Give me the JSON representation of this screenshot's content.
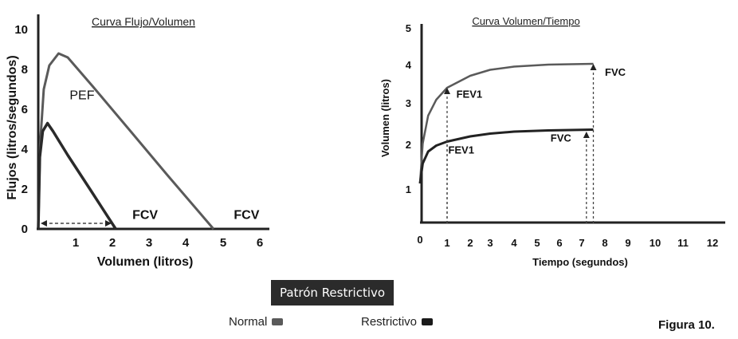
{
  "chart_data": [
    {
      "type": "line",
      "title": "Curva Flujo/Volumen",
      "xlabel": "Volumen (litros)",
      "ylabel": "Flujos (litros/segundos)",
      "xlim": [
        0,
        6
      ],
      "ylim": [
        0,
        10
      ],
      "x_ticks": [
        "1",
        "2",
        "3",
        "4",
        "5",
        "6"
      ],
      "y_ticks": [
        "0",
        "2",
        "4",
        "6",
        "8",
        "10"
      ],
      "series": [
        {
          "points": [
            [
              0,
              0
            ],
            [
              0.05,
              4.2
            ],
            [
              0.15,
              7.0
            ],
            [
              0.3,
              8.2
            ],
            [
              0.55,
              8.8
            ],
            [
              0.8,
              8.6
            ],
            [
              1.5,
              7.1
            ],
            [
              2.5,
              4.9
            ],
            [
              3.5,
              2.7
            ],
            [
              4.75,
              0
            ]
          ]
        },
        {
          "points": [
            [
              0,
              0
            ],
            [
              0.04,
              3.6
            ],
            [
              0.12,
              4.9
            ],
            [
              0.25,
              5.3
            ],
            [
              0.4,
              4.9
            ],
            [
              0.8,
              3.7
            ],
            [
              1.4,
              2.0
            ],
            [
              2.1,
              0
            ]
          ]
        }
      ],
      "annotations": [
        {
          "text": "PEF",
          "x": 0.85,
          "y": 6.5
        },
        {
          "text": "FCV",
          "x": 2.55,
          "y": 0.5
        },
        {
          "text": "FCV",
          "x": 5.3,
          "y": 0.5
        }
      ],
      "range_arrow": {
        "from": 0.15,
        "to": 1.9,
        "y": 0.2
      }
    },
    {
      "type": "line",
      "title": "Curva Volumen/Tiempo",
      "xlabel": "Tiempo (segundos)",
      "ylabel": "Volumen (litros)",
      "xlim": [
        0,
        12.5
      ],
      "ylim": [
        0,
        5
      ],
      "x_ticks": [
        "0",
        "1",
        "2",
        "3",
        "4",
        "5",
        "6",
        "7",
        "8",
        "9",
        "10",
        "11",
        "12"
      ],
      "y_ticks": [
        "1",
        "2",
        "3",
        "4",
        "5"
      ],
      "series": [
        {
          "points": [
            [
              0,
              1.0
            ],
            [
              0.1,
              2.0
            ],
            [
              0.3,
              2.7
            ],
            [
              0.6,
              3.1
            ],
            [
              1,
              3.4
            ],
            [
              2,
              3.7
            ],
            [
              3,
              3.85
            ],
            [
              4,
              3.93
            ],
            [
              5.5,
              3.98
            ],
            [
              7.5,
              4.0
            ]
          ]
        },
        {
          "points": [
            [
              0,
              1.0
            ],
            [
              0.1,
              1.5
            ],
            [
              0.3,
              1.8
            ],
            [
              0.6,
              1.95
            ],
            [
              1,
              2.05
            ],
            [
              2,
              2.18
            ],
            [
              3,
              2.25
            ],
            [
              4,
              2.3
            ],
            [
              5.5,
              2.33
            ],
            [
              7.5,
              2.35
            ]
          ]
        }
      ],
      "annotations": [
        {
          "text": "FEV1",
          "x": 1.4,
          "y": 3.15
        },
        {
          "text": "FVC",
          "x": 8.0,
          "y": 3.7
        },
        {
          "text": "FEV1",
          "x": 1.05,
          "y": 1.75
        },
        {
          "text": "FVC",
          "x": 5.6,
          "y": 2.05
        }
      ],
      "markers": [
        {
          "x": 1,
          "top": 3.4
        },
        {
          "x": 7.5,
          "top": 4.0
        },
        {
          "x": 1,
          "top": 2.05
        },
        {
          "x": 7.2,
          "top": 2.3
        }
      ]
    }
  ],
  "banner": "Patrón Restrictivo",
  "legend": [
    {
      "label": "Normal",
      "color": "#5a5a5a"
    },
    {
      "label": "Restrictivo",
      "color": "#1a1a1a"
    }
  ],
  "figure_label": "Figura 10."
}
